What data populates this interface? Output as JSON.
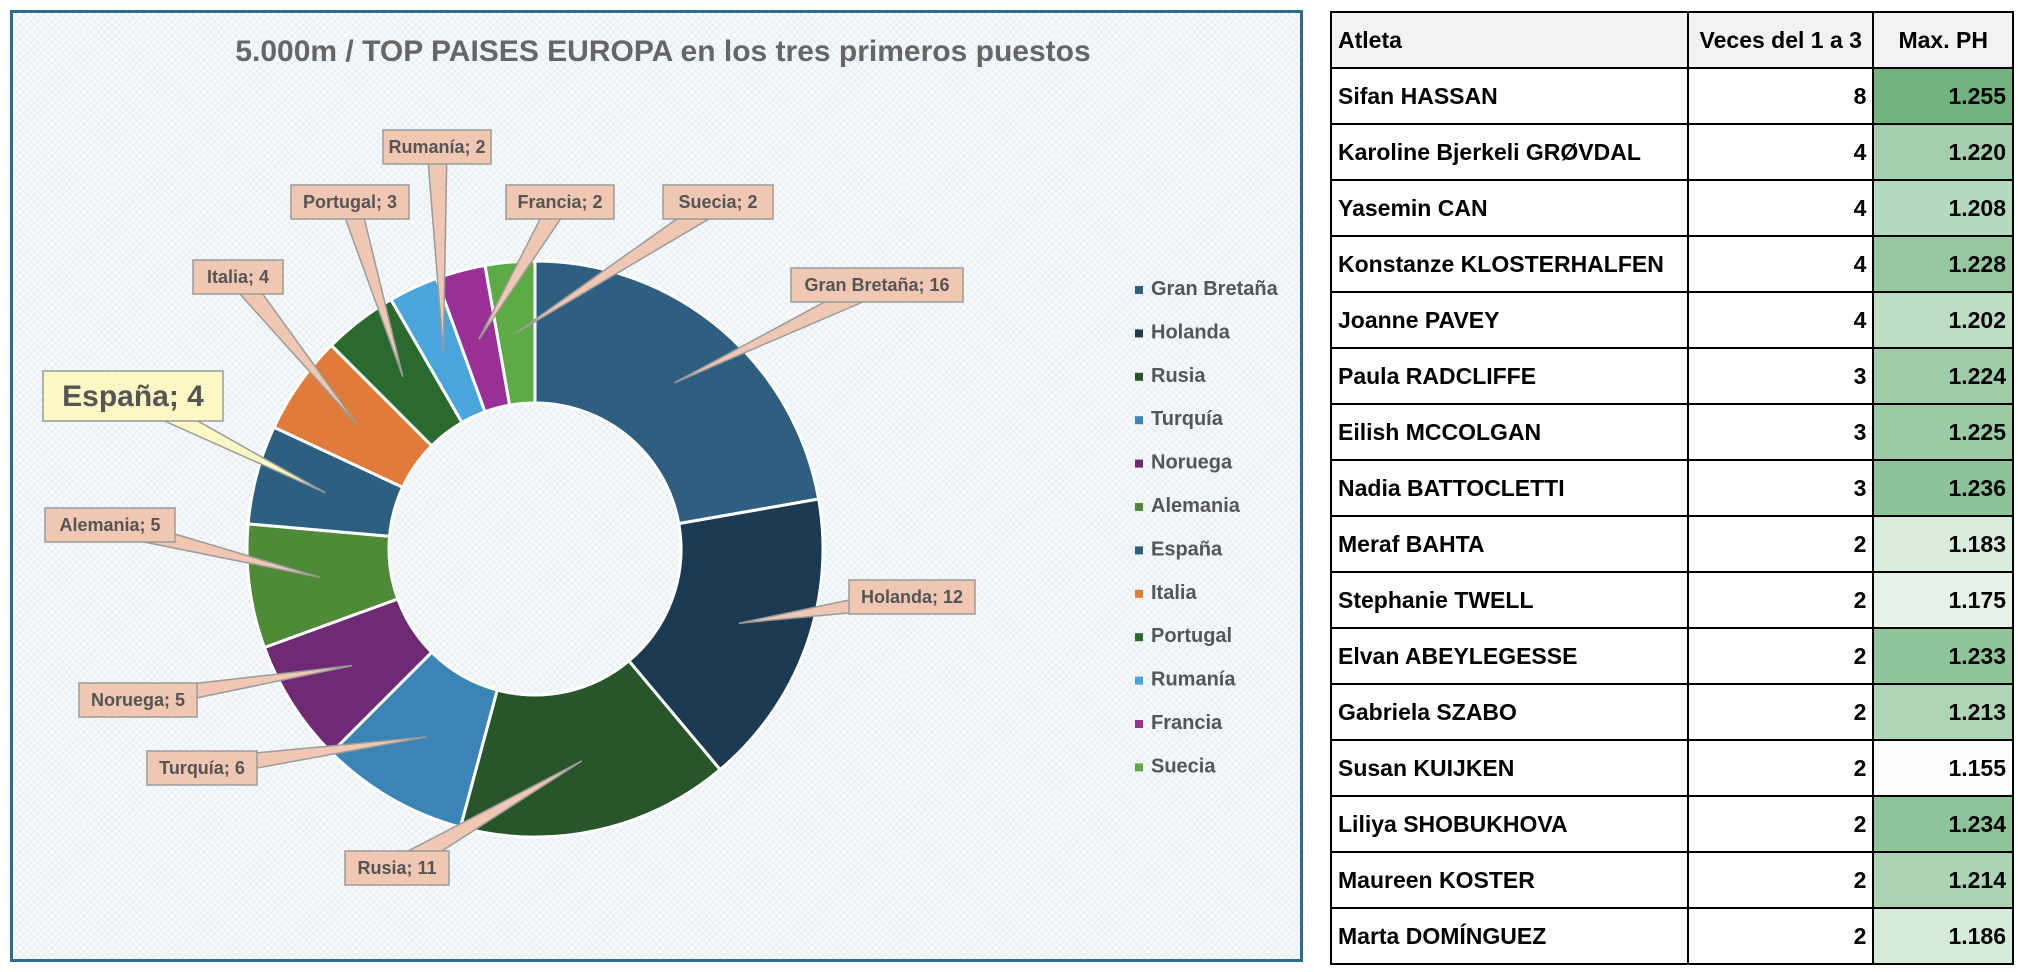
{
  "chart_data": {
    "type": "pie",
    "title": "5.000m / TOP  PAISES EUROPA en los tres primeros puestos",
    "legend_position": "right",
    "slices": [
      {
        "label": "Gran Bretaña",
        "value": 16,
        "color": "#2e5f80",
        "data_label": "Gran Bretaña; 16"
      },
      {
        "label": "Holanda",
        "value": 12,
        "color": "#1c3a52",
        "data_label": "Holanda; 12"
      },
      {
        "label": "Rusia",
        "value": 11,
        "color": "#28552a",
        "data_label": "Rusia; 11"
      },
      {
        "label": "Turquía",
        "value": 6,
        "color": "#3a85b6",
        "data_label": "Turquía; 6"
      },
      {
        "label": "Noruega",
        "value": 5,
        "color": "#6f2a74",
        "data_label": "Noruega; 5"
      },
      {
        "label": "Alemania",
        "value": 5,
        "color": "#4f8a36",
        "data_label": "Alemania; 5"
      },
      {
        "label": "España",
        "value": 4,
        "color": "#2c5f80",
        "data_label": "España; 4"
      },
      {
        "label": "Italia",
        "value": 4,
        "color": "#e07b3c",
        "data_label": "Italia; 4"
      },
      {
        "label": "Portugal",
        "value": 3,
        "color": "#2b6a2f",
        "data_label": "Portugal; 3"
      },
      {
        "label": "Rumanía",
        "value": 2,
        "color": "#4aa5dc",
        "data_label": "Rumanía; 2"
      },
      {
        "label": "Francia",
        "value": 2,
        "color": "#9a3096",
        "data_label": "Francia; 2"
      },
      {
        "label": "Suecia",
        "value": 2,
        "color": "#5eab46",
        "data_label": "Suecia; 2"
      }
    ]
  },
  "table": {
    "headers": [
      "Atleta",
      "Veces del 1 a 3",
      "Max. PH"
    ],
    "rows": [
      {
        "name": "Sifan HASSAN",
        "count": "8",
        "ph": "1.255",
        "color": "#71b37f"
      },
      {
        "name": "Karoline Bjerkeli GRØVDAL",
        "count": "4",
        "ph": "1.220",
        "color": "#a3cfac"
      },
      {
        "name": "Yasemin CAN",
        "count": "4",
        "ph": "1.208",
        "color": "#b5d9bc"
      },
      {
        "name": "Konstanze KLOSTERHALFEN",
        "count": "4",
        "ph": "1.228",
        "color": "#96c8a0"
      },
      {
        "name": "Joanne PAVEY",
        "count": "4",
        "ph": "1.202",
        "color": "#bedec4"
      },
      {
        "name": "Paula RADCLIFFE",
        "count": "3",
        "ph": "1.224",
        "color": "#9dcca7"
      },
      {
        "name": "Eilish MCCOLGAN",
        "count": "3",
        "ph": "1.225",
        "color": "#9bcba5"
      },
      {
        "name": "Nadia BATTOCLETTI",
        "count": "3",
        "ph": "1.236",
        "color": "#8cc397"
      },
      {
        "name": "Meraf BAHTA",
        "count": "2",
        "ph": "1.183",
        "color": "#daecdd"
      },
      {
        "name": "Stephanie TWELL",
        "count": "2",
        "ph": "1.175",
        "color": "#e6f2e8"
      },
      {
        "name": "Elvan ABEYLEGESSE",
        "count": "2",
        "ph": "1.233",
        "color": "#90c59a"
      },
      {
        "name": "Gabriela SZABO",
        "count": "2",
        "ph": "1.213",
        "color": "#aed5b5"
      },
      {
        "name": "Susan KUIJKEN",
        "count": "2",
        "ph": "1.155",
        "color": "#fbfbfe"
      },
      {
        "name": "Liliya SHOBUKHOVA",
        "count": "2",
        "ph": "1.234",
        "color": "#8fc499"
      },
      {
        "name": "Maureen KOSTER",
        "count": "2",
        "ph": "1.214",
        "color": "#acd4b3"
      },
      {
        "name": "Marta DOMÍNGUEZ",
        "count": "2",
        "ph": "1.186",
        "color": "#d6ead9"
      }
    ]
  }
}
